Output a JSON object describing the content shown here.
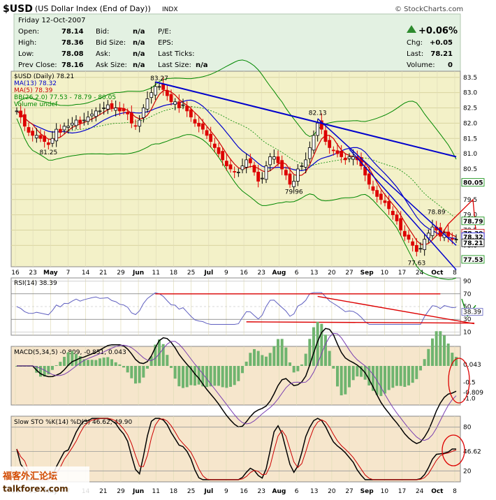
{
  "header": {
    "symbol": "$USD",
    "name": "(US Dollar Index (End of Day))",
    "exchange": "INDX",
    "brand": "© StockCharts.com",
    "date": "Friday 12-Oct-2007",
    "quote": [
      [
        {
          "l": "Open:",
          "v": "78.14"
        },
        {
          "l": "Bid:",
          "v": "n/a"
        },
        {
          "l": "P/E:",
          "v": ""
        }
      ],
      [
        {
          "l": "High:",
          "v": "78.36"
        },
        {
          "l": "Bid Size:",
          "v": "n/a"
        },
        {
          "l": "EPS:",
          "v": ""
        }
      ],
      [
        {
          "l": "Low:",
          "v": "78.08"
        },
        {
          "l": "Ask:",
          "v": "n/a"
        },
        {
          "l": "Last Ticks:",
          "v": ""
        }
      ],
      [
        {
          "l": "Prev Close:",
          "v": "78.16"
        },
        {
          "l": "Ask Size:",
          "v": "n/a"
        },
        {
          "l": "Last Size:",
          "v": "n/a"
        }
      ]
    ],
    "change_pct": "+0.06%",
    "right": [
      {
        "l": "Chg:",
        "v": "+0.05"
      },
      {
        "l": "Last:",
        "v": "78.21"
      },
      {
        "l": "Volume:",
        "v": "0"
      }
    ]
  },
  "colors": {
    "up": "#000000",
    "down": "#dd0000",
    "ma13": "#0000cc",
    "ma5": "#cc0000",
    "bb": "#008800",
    "trend": "#0000cc",
    "red": "#dd0000"
  },
  "x_labels": [
    "16",
    "23",
    "May",
    "7",
    "14",
    "21",
    "29",
    "Jun",
    "11",
    "18",
    "25",
    "Jul",
    "9",
    "16",
    "23",
    "Aug",
    "6",
    "13",
    "20",
    "27",
    "Sep",
    "10",
    "17",
    "24",
    "Oct",
    "8"
  ],
  "x_labels_bold": [
    "May",
    "Jun",
    "Jul",
    "Aug",
    "Sep",
    "Oct"
  ],
  "chart_data": [
    {
      "type": "line",
      "panel": "price",
      "legend": [
        "$USD (Daily) 78.21",
        "MA(13) 78.32",
        "MA(5) 78.39",
        "BB(26,2.0) 77.53 - 78.79 - 80.05",
        "Volume undef"
      ],
      "ylim": [
        77.3,
        83.7
      ],
      "yticks": [
        "83.5",
        "83.0",
        "82.5",
        "82.0",
        "81.5",
        "81.0",
        "80.5",
        "80.0",
        "79.5",
        "79.0",
        "78.5",
        "78.0"
      ],
      "price_path": [
        82.4,
        82.2,
        81.9,
        81.7,
        81.6,
        81.6,
        81.5,
        81.4,
        81.3,
        81.5,
        81.8,
        81.7,
        81.9,
        81.9,
        82.0,
        82.1,
        82.0,
        82.1,
        82.2,
        82.3,
        82.4,
        82.4,
        82.5,
        82.6,
        82.5,
        82.5,
        82.4,
        82.4,
        82.3,
        82.0,
        81.9,
        82.1,
        82.5,
        82.8,
        83.0,
        83.2,
        83.2,
        83.1,
        82.9,
        82.7,
        82.7,
        82.5,
        82.6,
        82.4,
        82.2,
        82.0,
        81.9,
        81.8,
        81.6,
        81.4,
        81.2,
        81.0,
        80.8,
        80.6,
        80.5,
        80.4,
        80.4,
        80.6,
        80.8,
        80.7,
        80.4,
        80.1,
        80.2,
        80.6,
        80.9,
        80.9,
        80.7,
        80.5,
        80.3,
        80.0,
        80.1,
        80.5,
        80.6,
        80.8,
        81.2,
        81.6,
        82.0,
        81.8,
        81.4,
        81.2,
        81.1,
        81.0,
        80.9,
        80.8,
        80.9,
        80.9,
        80.8,
        80.6,
        80.3,
        80.0,
        79.8,
        79.6,
        79.5,
        79.4,
        79.2,
        79.0,
        78.8,
        78.5,
        78.3,
        78.2,
        78.0,
        77.8,
        77.9,
        78.2,
        78.4,
        78.6,
        78.5,
        78.3,
        78.4,
        78.3,
        78.2,
        78.2
      ],
      "annotations": [
        {
          "t": "83.27",
          "i": 36,
          "v": 83.27,
          "pos": "above"
        },
        {
          "t": "81.25",
          "i": 8,
          "v": 81.25,
          "pos": "below"
        },
        {
          "t": "82.13",
          "i": 76,
          "v": 82.13,
          "pos": "above"
        },
        {
          "t": "79.96",
          "i": 70,
          "v": 79.96,
          "pos": "below"
        },
        {
          "t": "78.89",
          "i": 106,
          "v": 78.89,
          "pos": "above"
        },
        {
          "t": "77.63",
          "i": 101,
          "v": 77.63,
          "pos": "below"
        }
      ],
      "right_labels": [
        {
          "t": "80.05",
          "v": 80.05,
          "c": "#008800"
        },
        {
          "t": "78.79",
          "v": 78.79,
          "c": "#008800"
        },
        {
          "t": "78.39",
          "v": 78.39,
          "c": "#cc0000"
        },
        {
          "t": "78.32",
          "v": 78.32,
          "c": "#0000cc"
        },
        {
          "t": "78.21",
          "v": 78.21,
          "c": "#000000"
        },
        {
          "t": "77.53",
          "v": 77.53,
          "c": "#008800"
        }
      ]
    },
    {
      "type": "line",
      "panel": "rsi",
      "legend": "RSI(14) 38.39",
      "ylim": [
        5,
        95
      ],
      "yticks": [
        "90",
        "70",
        "50",
        "30",
        "10"
      ],
      "last": "38.39"
    },
    {
      "type": "line",
      "panel": "macd",
      "legend": "MACD(5,34,5) -0.809, -0.851, 0.043",
      "ylim": [
        -1.2,
        0.6
      ],
      "yticks": [
        "0.043",
        "-0.5",
        "-0.809",
        "-1.0"
      ]
    },
    {
      "type": "line",
      "panel": "sto",
      "legend": "Slow STO %K(14) %D(3) 46.62, 49.90",
      "ylim": [
        5,
        95
      ],
      "yticks": [
        "80",
        "46.62",
        "20"
      ]
    }
  ],
  "watermark": {
    "cn": "福客外汇论坛",
    "en": "talkforex.com"
  }
}
